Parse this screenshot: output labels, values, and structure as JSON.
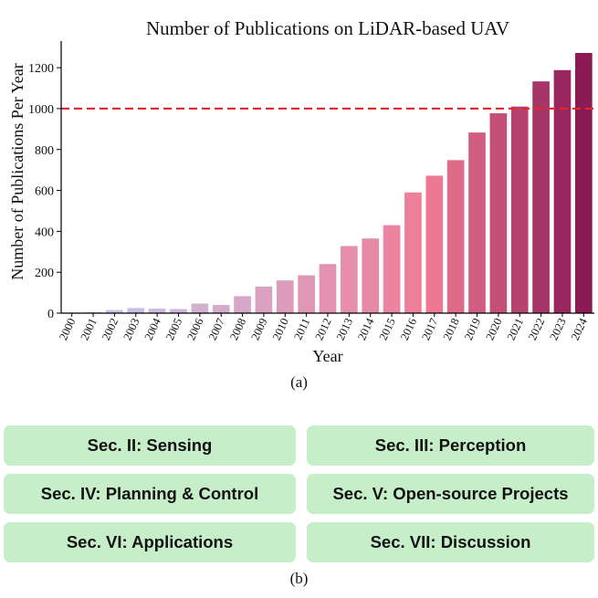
{
  "chart_data": {
    "type": "bar",
    "title": "Number of Publications on LiDAR-based UAV",
    "xlabel": "Year",
    "ylabel": "Number of Publications Per Year",
    "categories": [
      "2000",
      "2001",
      "2002",
      "2003",
      "2004",
      "2005",
      "2006",
      "2007",
      "2008",
      "2009",
      "2010",
      "2011",
      "2012",
      "2013",
      "2014",
      "2015",
      "2016",
      "2017",
      "2018",
      "2019",
      "2020",
      "2021",
      "2022",
      "2023",
      "2024"
    ],
    "values": [
      3,
      5,
      15,
      25,
      22,
      20,
      47,
      40,
      83,
      130,
      160,
      185,
      240,
      328,
      365,
      430,
      590,
      672,
      748,
      883,
      977,
      1010,
      1133,
      1188,
      1272
    ],
    "ylim": [
      0,
      1330
    ],
    "yticks": [
      0,
      200,
      400,
      600,
      800,
      1000,
      1200
    ],
    "reference_line": {
      "y": 1000,
      "style": "dashed",
      "color": "#e8272b"
    },
    "colors": {
      "start": "#c2cdf2",
      "mid": "#f07b96",
      "end": "#8c1a55"
    },
    "grid": false
  },
  "caption_a": "(a)",
  "caption_b": "(b)",
  "sections": [
    "Sec. II: Sensing",
    "Sec. III: Perception",
    "Sec. IV: Planning & Control",
    "Sec. V: Open-source Projects",
    "Sec. VI: Applications",
    "Sec. VII: Discussion"
  ]
}
